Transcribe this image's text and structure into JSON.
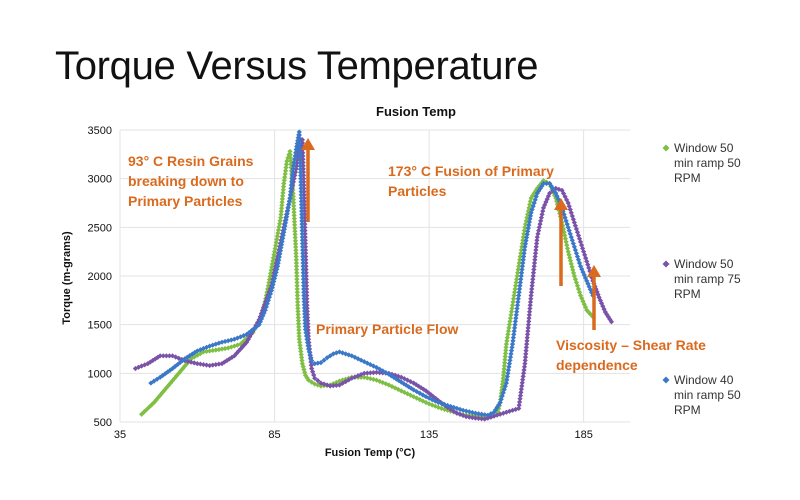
{
  "slide": {
    "title": "Torque Versus Temperature"
  },
  "colors": {
    "green": "#7fbf44",
    "purple": "#7a52a8",
    "blue": "#3c78c8",
    "annotation": "#d96a1e",
    "grid": "#e3e3e3"
  },
  "chart_data": {
    "type": "scatter",
    "title": "Fusion Temp",
    "xlabel": "Fusion Temp (°C)",
    "ylabel": "Torque (m-grams)",
    "xlim": [
      35,
      200
    ],
    "ylim": [
      500,
      3500
    ],
    "x_ticks": [
      "35",
      "85",
      "135",
      "185"
    ],
    "y_ticks": [
      "500",
      "1000",
      "1500",
      "2000",
      "2500",
      "3000",
      "3500"
    ],
    "grid": true,
    "legend_position": "right",
    "series": [
      {
        "name": "Window 50 min ramp 50 RPM",
        "color_key": "green",
        "points": [
          [
            42,
            580
          ],
          [
            46,
            700
          ],
          [
            50,
            850
          ],
          [
            54,
            1000
          ],
          [
            58,
            1150
          ],
          [
            62,
            1220
          ],
          [
            66,
            1240
          ],
          [
            70,
            1260
          ],
          [
            74,
            1300
          ],
          [
            78,
            1420
          ],
          [
            81,
            1600
          ],
          [
            83,
            1900
          ],
          [
            85,
            2250
          ],
          [
            87,
            2600
          ],
          [
            88,
            2950
          ],
          [
            89,
            3180
          ],
          [
            90,
            3280
          ],
          [
            91,
            2850
          ],
          [
            92,
            2200
          ],
          [
            92.5,
            1700
          ],
          [
            93,
            1350
          ],
          [
            94,
            1100
          ],
          [
            95,
            980
          ],
          [
            96,
            930
          ],
          [
            98,
            890
          ],
          [
            100,
            870
          ],
          [
            103,
            880
          ],
          [
            106,
            920
          ],
          [
            110,
            960
          ],
          [
            114,
            960
          ],
          [
            118,
            930
          ],
          [
            122,
            880
          ],
          [
            126,
            820
          ],
          [
            130,
            760
          ],
          [
            134,
            700
          ],
          [
            138,
            650
          ],
          [
            142,
            610
          ],
          [
            146,
            575
          ],
          [
            150,
            560
          ],
          [
            153,
            555
          ],
          [
            155,
            550
          ],
          [
            157,
            575
          ],
          [
            158,
            700
          ],
          [
            159,
            950
          ],
          [
            160,
            1300
          ],
          [
            162,
            1700
          ],
          [
            164,
            2100
          ],
          [
            166,
            2500
          ],
          [
            168,
            2800
          ],
          [
            170,
            2900
          ],
          [
            172,
            2980
          ],
          [
            174,
            2950
          ],
          [
            176,
            2800
          ],
          [
            178,
            2550
          ],
          [
            180,
            2250
          ],
          [
            182,
            2000
          ],
          [
            184,
            1800
          ],
          [
            186,
            1650
          ],
          [
            188,
            1580
          ]
        ]
      },
      {
        "name": "Window 50 min ramp 75 RPM",
        "color_key": "purple",
        "points": [
          [
            40,
            1050
          ],
          [
            44,
            1100
          ],
          [
            48,
            1180
          ],
          [
            52,
            1180
          ],
          [
            56,
            1130
          ],
          [
            60,
            1100
          ],
          [
            64,
            1080
          ],
          [
            68,
            1100
          ],
          [
            72,
            1180
          ],
          [
            76,
            1320
          ],
          [
            80,
            1550
          ],
          [
            84,
            1900
          ],
          [
            86,
            2200
          ],
          [
            88,
            2500
          ],
          [
            90,
            2800
          ],
          [
            92,
            3100
          ],
          [
            93,
            3350
          ],
          [
            94,
            3400
          ],
          [
            94.5,
            2900
          ],
          [
            95,
            2300
          ],
          [
            95.5,
            1700
          ],
          [
            96,
            1350
          ],
          [
            97,
            1050
          ],
          [
            98,
            950
          ],
          [
            100,
            900
          ],
          [
            103,
            870
          ],
          [
            106,
            880
          ],
          [
            110,
            950
          ],
          [
            114,
            1000
          ],
          [
            118,
            1010
          ],
          [
            122,
            1000
          ],
          [
            126,
            960
          ],
          [
            130,
            900
          ],
          [
            134,
            820
          ],
          [
            138,
            720
          ],
          [
            141,
            650
          ],
          [
            144,
            590
          ],
          [
            147,
            555
          ],
          [
            150,
            540
          ],
          [
            153,
            530
          ],
          [
            164,
            640
          ],
          [
            166,
            1100
          ],
          [
            168,
            1800
          ],
          [
            170,
            2400
          ],
          [
            172,
            2700
          ],
          [
            174,
            2850
          ],
          [
            176,
            2900
          ],
          [
            178,
            2880
          ],
          [
            180,
            2750
          ],
          [
            182,
            2550
          ],
          [
            184,
            2350
          ],
          [
            186,
            2150
          ],
          [
            188,
            1950
          ],
          [
            190,
            1780
          ],
          [
            192,
            1630
          ],
          [
            194,
            1530
          ]
        ]
      },
      {
        "name": "Window 40 min ramp 50 RPM",
        "color_key": "blue",
        "points": [
          [
            45,
            900
          ],
          [
            48,
            960
          ],
          [
            52,
            1050
          ],
          [
            56,
            1150
          ],
          [
            60,
            1230
          ],
          [
            64,
            1280
          ],
          [
            68,
            1320
          ],
          [
            72,
            1350
          ],
          [
            76,
            1400
          ],
          [
            80,
            1500
          ],
          [
            82,
            1650
          ],
          [
            84,
            1850
          ],
          [
            86,
            2100
          ],
          [
            88,
            2450
          ],
          [
            90,
            2800
          ],
          [
            91,
            3100
          ],
          [
            92,
            3300
          ],
          [
            93,
            3480
          ],
          [
            93.5,
            3000
          ],
          [
            94,
            2400
          ],
          [
            94.5,
            1800
          ],
          [
            95,
            1450
          ],
          [
            96,
            1250
          ],
          [
            97,
            1130
          ],
          [
            98,
            1100
          ],
          [
            100,
            1110
          ],
          [
            102,
            1160
          ],
          [
            104,
            1200
          ],
          [
            106,
            1220
          ],
          [
            110,
            1180
          ],
          [
            114,
            1120
          ],
          [
            118,
            1060
          ],
          [
            122,
            990
          ],
          [
            126,
            910
          ],
          [
            130,
            830
          ],
          [
            134,
            760
          ],
          [
            138,
            700
          ],
          [
            142,
            660
          ],
          [
            146,
            620
          ],
          [
            150,
            590
          ],
          [
            154,
            570
          ],
          [
            156,
            600
          ],
          [
            158,
            700
          ],
          [
            160,
            900
          ],
          [
            162,
            1300
          ],
          [
            164,
            1800
          ],
          [
            166,
            2300
          ],
          [
            168,
            2650
          ],
          [
            170,
            2850
          ],
          [
            172,
            2950
          ],
          [
            174,
            2950
          ],
          [
            176,
            2850
          ],
          [
            178,
            2700
          ],
          [
            180,
            2500
          ],
          [
            182,
            2300
          ],
          [
            184,
            2100
          ],
          [
            186,
            1950
          ],
          [
            188,
            1800
          ]
        ]
      }
    ],
    "annotations": [
      {
        "lines": [
          "93° C Resin Grains",
          "breaking down to",
          "Primary Particles"
        ]
      },
      {
        "lines": [
          "173° C Fusion of Primary",
          "Particles"
        ]
      },
      {
        "lines": [
          "Primary Particle Flow"
        ]
      },
      {
        "lines": [
          "Viscosity – Shear Rate",
          "dependence"
        ]
      }
    ],
    "legend": [
      {
        "lines": [
          "Window 50",
          "min ramp 50",
          "RPM"
        ],
        "color_key": "green"
      },
      {
        "lines": [
          "Window 50",
          "min ramp 75",
          "RPM"
        ],
        "color_key": "purple"
      },
      {
        "lines": [
          "Window 40",
          "min ramp 50",
          "RPM"
        ],
        "color_key": "blue"
      }
    ]
  }
}
